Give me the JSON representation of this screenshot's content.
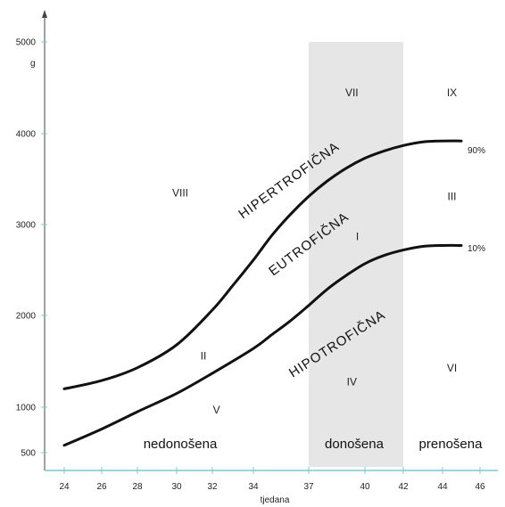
{
  "chart_data": {
    "type": "line",
    "xlabel": "tjedana",
    "ylabel_unit": "g",
    "x_ticks": [
      "24",
      "26",
      "28",
      "30",
      "32",
      "34",
      "37",
      "40",
      "42",
      "44",
      "46"
    ],
    "y_ticks": [
      "500",
      "1000",
      "2000",
      "3000",
      "4000",
      "5000"
    ],
    "term_band": [
      37,
      42
    ],
    "series": [
      {
        "name": "90%",
        "x": [
          24,
          26,
          28,
          30,
          32,
          33,
          34,
          35,
          36,
          37,
          38,
          39,
          40,
          41,
          42,
          43,
          44,
          45
        ],
        "y": [
          1200,
          1290,
          1430,
          1680,
          2060,
          2330,
          2610,
          2880,
          3110,
          3310,
          3480,
          3620,
          3730,
          3810,
          3870,
          3910,
          3920,
          3920
        ]
      },
      {
        "name": "10%",
        "x": [
          24,
          26,
          28,
          30,
          32,
          34,
          35,
          36,
          37,
          38,
          39,
          40,
          41,
          42,
          43,
          44,
          45
        ],
        "y": [
          580,
          760,
          950,
          1150,
          1370,
          1640,
          1790,
          1940,
          2110,
          2290,
          2440,
          2570,
          2660,
          2720,
          2760,
          2770,
          2770
        ]
      }
    ],
    "curve_labels": [
      "HIPERTROFIČNA",
      "EUTROFIČNA",
      "HIPOTROFIČNA"
    ],
    "zones": [
      {
        "label": "I",
        "x": 39.6,
        "y": 2830
      },
      {
        "label": "II",
        "x": 31.5,
        "y": 1520
      },
      {
        "label": "III",
        "x": 44.5,
        "y": 3270
      },
      {
        "label": "IV",
        "x": 39.3,
        "y": 1240
      },
      {
        "label": "V",
        "x": 32.2,
        "y": 930
      },
      {
        "label": "VI",
        "x": 44.5,
        "y": 1390
      },
      {
        "label": "VII",
        "x": 39.3,
        "y": 4410
      },
      {
        "label": "VIII",
        "x": 30.2,
        "y": 3310
      },
      {
        "label": "IX",
        "x": 44.5,
        "y": 4410
      }
    ],
    "period_labels": [
      "nedonošena",
      "donošena",
      "prenošena"
    ],
    "band_color": "#e6e6e6",
    "line_color": "#111111"
  }
}
